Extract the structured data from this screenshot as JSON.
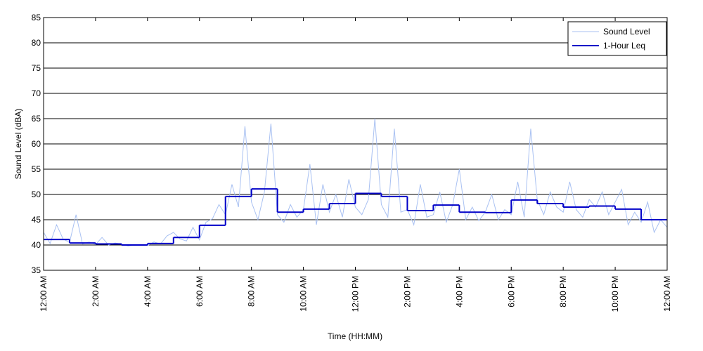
{
  "chart_data": {
    "type": "line",
    "ylabel": "Sound Level (dBA)",
    "xlabel": "Time (HH:MM)",
    "xlim": [
      0,
      24
    ],
    "xticks": [
      {
        "value": 0,
        "label": "12:00 AM"
      },
      {
        "value": 2,
        "label": "2:00 AM"
      },
      {
        "value": 4,
        "label": "4:00 AM"
      },
      {
        "value": 6,
        "label": "6:00 AM"
      },
      {
        "value": 8,
        "label": "8:00 AM"
      },
      {
        "value": 10,
        "label": "10:00 AM"
      },
      {
        "value": 12,
        "label": "12:00 PM"
      },
      {
        "value": 14,
        "label": "2:00 PM"
      },
      {
        "value": 16,
        "label": "4:00 PM"
      },
      {
        "value": 18,
        "label": "6:00 PM"
      },
      {
        "value": 20,
        "label": "8:00 PM"
      },
      {
        "value": 22,
        "label": "10:00 PM"
      },
      {
        "value": 24,
        "label": "12:00 AM"
      }
    ],
    "ylim": [
      35,
      85
    ],
    "yticks": [
      35,
      40,
      45,
      50,
      55,
      60,
      65,
      70,
      75,
      80,
      85
    ],
    "grid": true,
    "legend": "top-right",
    "series": [
      {
        "name": "Sound Level",
        "color": "#a9c1f2",
        "style": "line",
        "x": [
          0,
          0.25,
          0.5,
          0.75,
          1,
          1.25,
          1.5,
          1.75,
          2,
          2.25,
          2.5,
          2.75,
          3,
          3.25,
          3.5,
          3.75,
          4,
          4.25,
          4.5,
          4.75,
          5,
          5.25,
          5.5,
          5.75,
          6,
          6.25,
          6.5,
          6.75,
          7,
          7.25,
          7.5,
          7.75,
          8,
          8.25,
          8.5,
          8.75,
          9,
          9.25,
          9.5,
          9.75,
          10,
          10.25,
          10.5,
          10.75,
          11,
          11.25,
          11.5,
          11.75,
          12,
          12.25,
          12.5,
          12.75,
          13,
          13.25,
          13.5,
          13.75,
          14,
          14.25,
          14.5,
          14.75,
          15,
          15.25,
          15.5,
          15.75,
          16,
          16.25,
          16.5,
          16.75,
          17,
          17.25,
          17.5,
          17.75,
          18,
          18.25,
          18.5,
          18.75,
          19,
          19.25,
          19.5,
          19.75,
          20,
          20.25,
          20.5,
          20.75,
          21,
          21.25,
          21.5,
          21.75,
          22,
          22.25,
          22.5,
          22.75,
          23,
          23.25,
          23.5,
          23.75,
          24
        ],
        "values": [
          42.5,
          40.3,
          44.0,
          41.2,
          40.5,
          46.0,
          40.2,
          40.6,
          40.1,
          41.5,
          40.0,
          40.4,
          40.2,
          39.8,
          40.0,
          40.1,
          39.9,
          40.6,
          40.2,
          41.8,
          42.5,
          41.2,
          40.8,
          43.5,
          41.0,
          44.5,
          45.2,
          48.0,
          46.0,
          52.0,
          47.5,
          63.5,
          48.5,
          45.0,
          50.5,
          64.0,
          46.0,
          44.5,
          48.0,
          45.5,
          47.0,
          56.0,
          44.0,
          52.0,
          46.5,
          50.0,
          45.5,
          53.0,
          47.5,
          46.0,
          49.0,
          65.0,
          48.0,
          45.5,
          63.0,
          46.5,
          47.0,
          44.0,
          52.0,
          45.5,
          46.0,
          50.5,
          44.5,
          48.0,
          55.0,
          45.0,
          47.5,
          44.8,
          46.5,
          50.0,
          45.0,
          47.0,
          46.0,
          52.5,
          45.5,
          63.0,
          49.0,
          46.0,
          50.5,
          47.5,
          46.5,
          52.5,
          47.0,
          45.5,
          49.0,
          47.5,
          50.5,
          46.0,
          48.5,
          51.0,
          44.0,
          46.5,
          44.5,
          48.5,
          42.5,
          45.0,
          43.5
        ]
      },
      {
        "name": "1-Hour Leq",
        "color": "#0000c8",
        "style": "step",
        "x": [
          0,
          1,
          2,
          3,
          4,
          5,
          6,
          7,
          8,
          9,
          10,
          11,
          12,
          13,
          14,
          15,
          16,
          17,
          18,
          19,
          20,
          21,
          22,
          23
        ],
        "values": [
          41.1,
          40.4,
          40.2,
          40.0,
          40.3,
          41.5,
          43.9,
          49.6,
          51.1,
          46.5,
          47.1,
          48.2,
          50.2,
          49.6,
          46.8,
          47.9,
          46.5,
          46.4,
          48.9,
          48.2,
          47.5,
          47.7,
          47.1,
          45.0
        ]
      }
    ]
  }
}
